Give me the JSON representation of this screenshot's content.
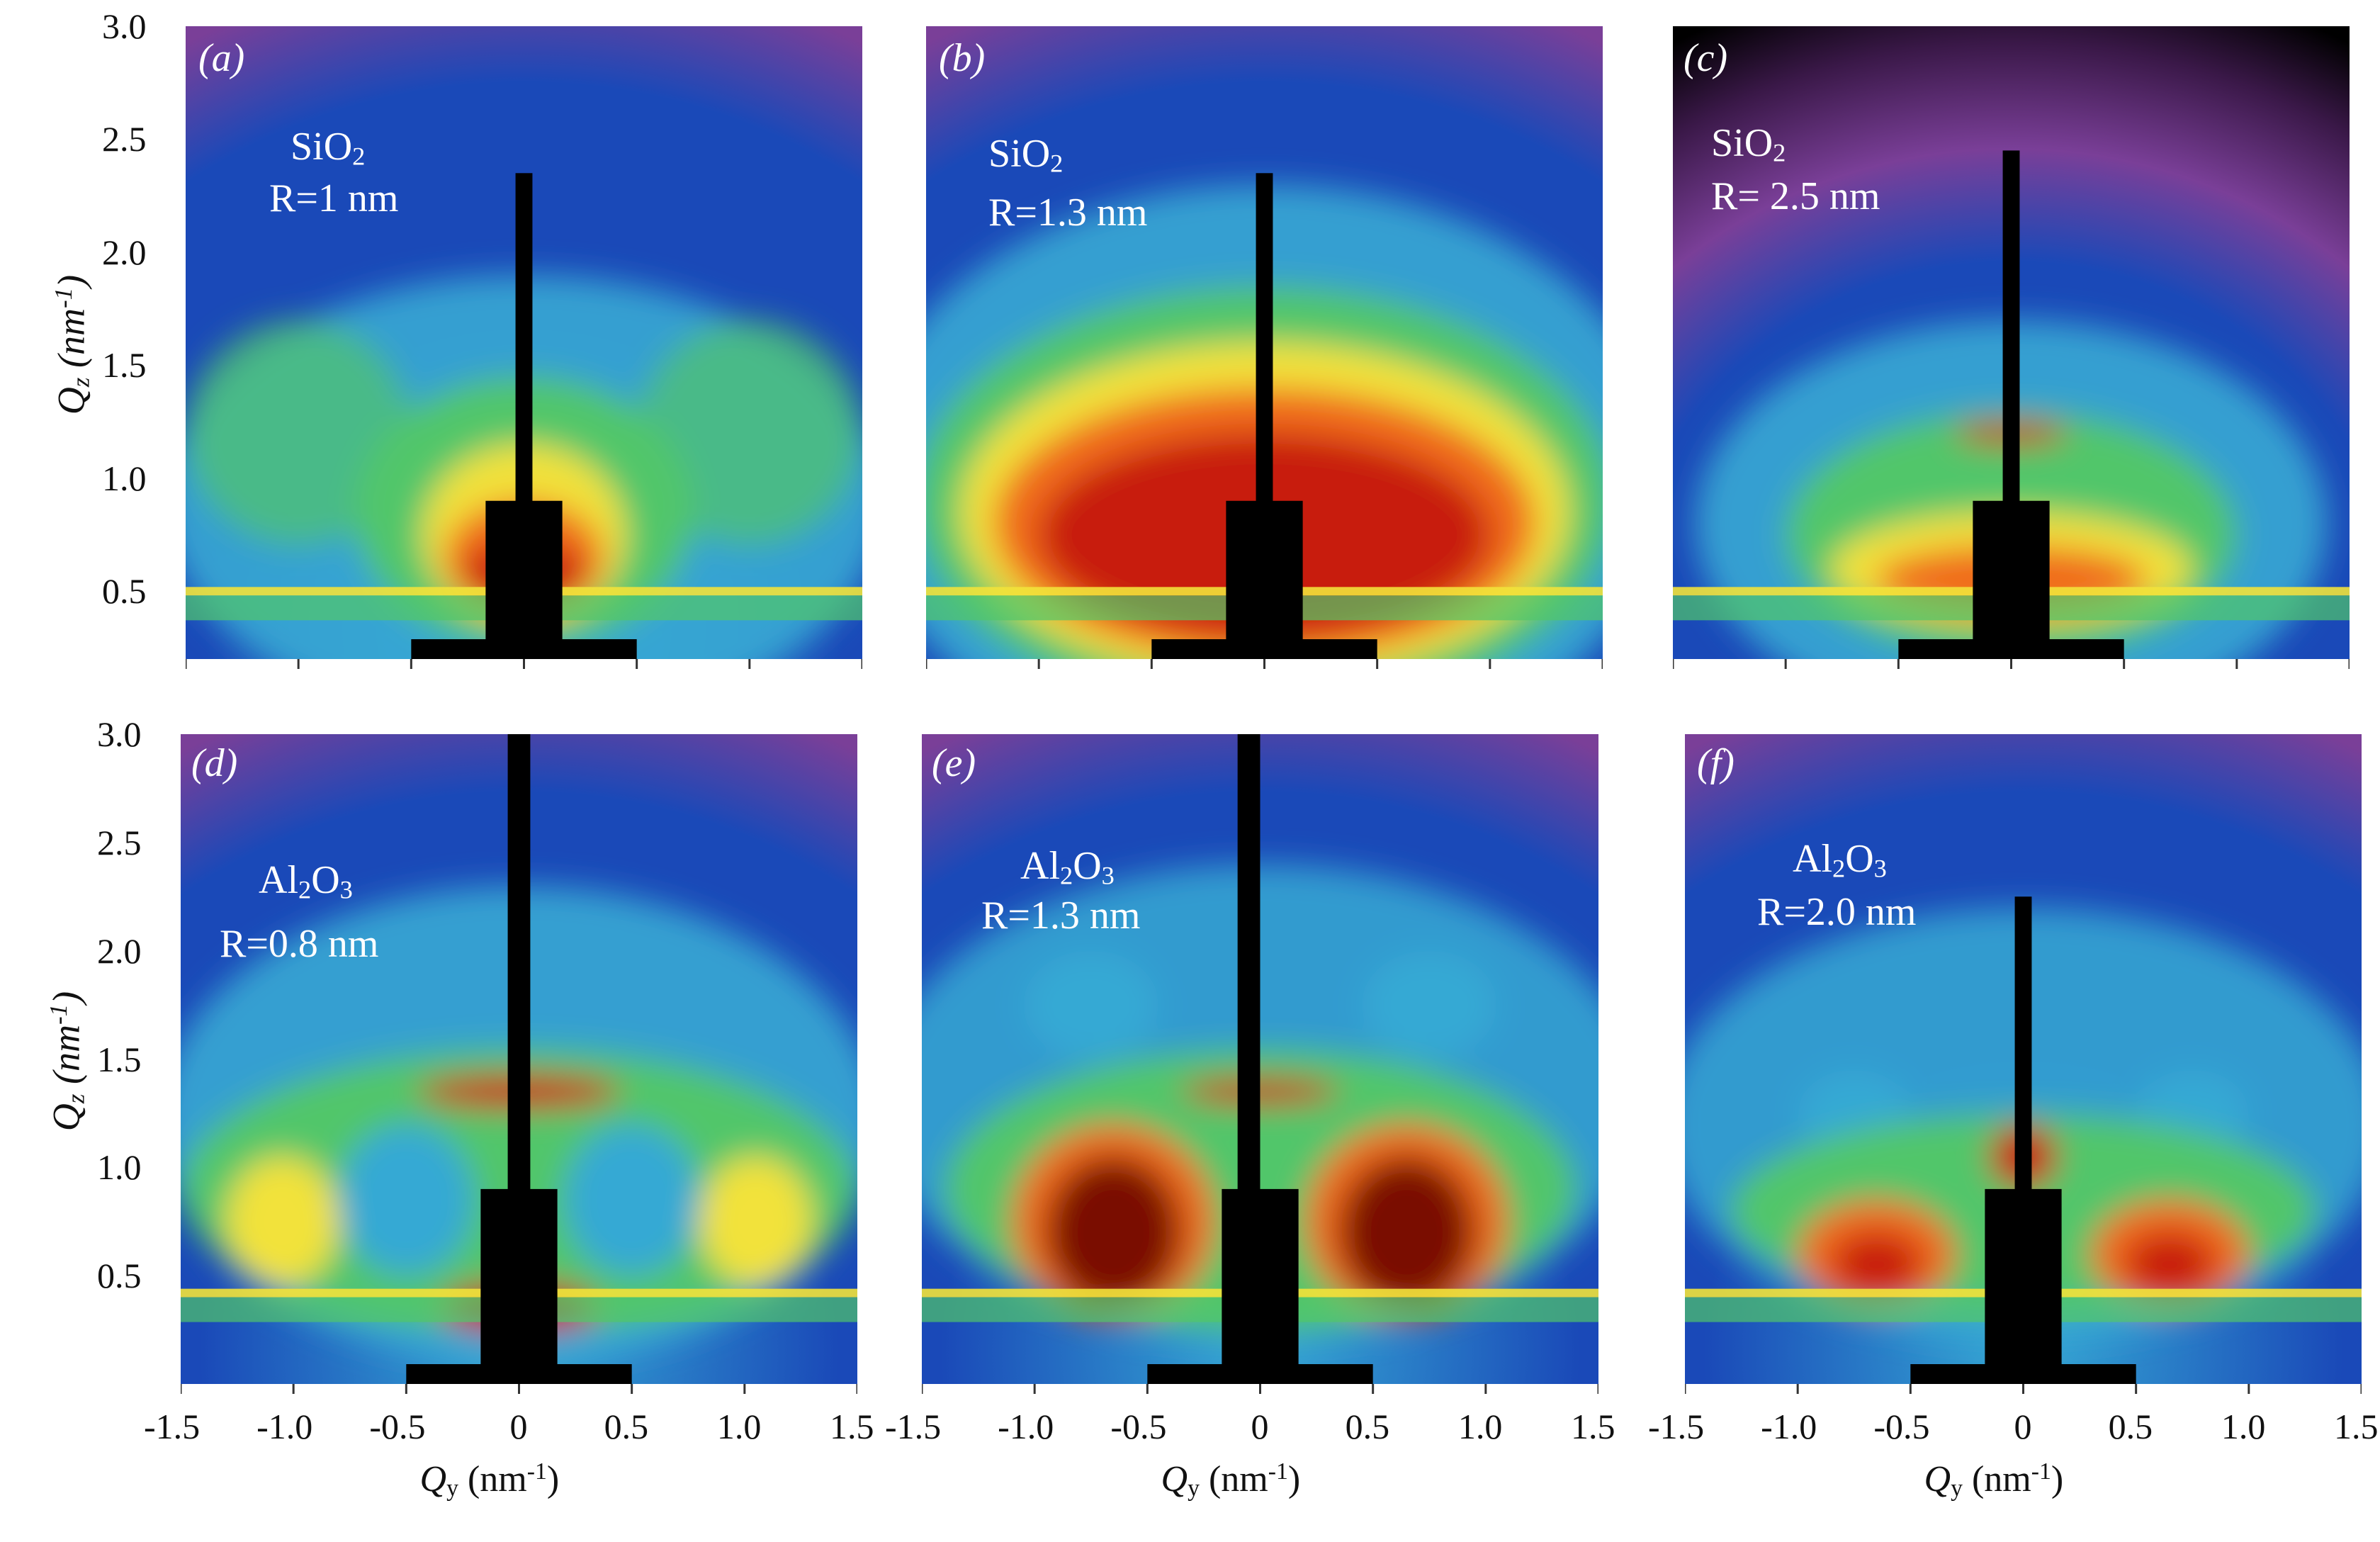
{
  "x_axis_label": {
    "symbol": "Q",
    "sub": "y",
    "unit": " (nm",
    "sup": "-1",
    "close": ")"
  },
  "y_axis_label": {
    "symbol": "Q",
    "sub": "z",
    "unit": " (nm",
    "sup": "-1",
    "close": ")"
  },
  "colors": {
    "black": "#000000",
    "dark_purple": "#3a1848",
    "purple": "#7a3f98",
    "blue": "#1a49b8",
    "cyan": "#36a9d4",
    "green": "#51c66a",
    "yellow": "#f2e23a",
    "orange": "#f06a1a",
    "red": "#c81a10",
    "dark_red": "#7a0c06",
    "label_white": "#ffffff",
    "axis": "#333333"
  },
  "chart_data": [
    {
      "type": "heatmap",
      "panel": "(a)",
      "material": "SiO",
      "material_sub": "2",
      "radius": "R=1 nm",
      "xlim": [
        -1.5,
        1.5
      ],
      "ylim": [
        0.2,
        3.0
      ],
      "x_ticks": [
        -1.5,
        -1.0,
        -0.5,
        0,
        0.5,
        1.0,
        1.5
      ],
      "y_ticks": [
        0.5,
        1.0,
        1.5,
        2.0,
        2.5,
        3.0
      ],
      "x_tick_labels": [],
      "y_tick_labels": [
        "3.0",
        "2.5",
        "2.0",
        "1.5",
        "1.0",
        "0.5"
      ]
    },
    {
      "type": "heatmap",
      "panel": "(b)",
      "material": "SiO",
      "material_sub": "2",
      "radius": "R=1.3 nm",
      "xlim": [
        -1.5,
        1.5
      ],
      "ylim": [
        0.2,
        3.0
      ],
      "x_ticks": [
        -1.5,
        -1.0,
        -0.5,
        0,
        0.5,
        1.0,
        1.5
      ],
      "y_ticks": [],
      "x_tick_labels": [],
      "y_tick_labels": []
    },
    {
      "type": "heatmap",
      "panel": "(c)",
      "material": "SiO",
      "material_sub": "2",
      "radius": "R= 2.5 nm",
      "xlim": [
        -1.5,
        1.5
      ],
      "ylim": [
        0.2,
        3.0
      ],
      "x_ticks": [
        -1.5,
        -1.0,
        -0.5,
        0,
        0.5,
        1.0,
        1.5
      ],
      "y_ticks": [],
      "x_tick_labels": [],
      "y_tick_labels": []
    },
    {
      "type": "heatmap",
      "panel": "(d)",
      "material": "Al",
      "material_sub": "2",
      "material_suffix": "O",
      "material_sub2": "3",
      "radius": "R=0.8 nm",
      "xlim": [
        -1.5,
        1.5
      ],
      "ylim": [
        0.0,
        3.0
      ],
      "x_ticks": [
        -1.5,
        -1.0,
        -0.5,
        0,
        0.5,
        1.0,
        1.5
      ],
      "y_ticks": [
        0.5,
        1.0,
        1.5,
        2.0,
        2.5,
        3.0
      ],
      "x_tick_labels": [
        "-1.5",
        "-1.0",
        "-0.5",
        "0",
        "0.5",
        "1.0",
        "1.5"
      ],
      "y_tick_labels": [
        "3.0",
        "2.5",
        "2.0",
        "1.5",
        "1.0",
        "0.5"
      ]
    },
    {
      "type": "heatmap",
      "panel": "(e)",
      "material": "Al",
      "material_sub": "2",
      "material_suffix": "O",
      "material_sub2": "3",
      "radius": "R=1.3 nm",
      "xlim": [
        -1.5,
        1.5
      ],
      "ylim": [
        0.0,
        3.0
      ],
      "x_ticks": [
        -1.5,
        -1.0,
        -0.5,
        0,
        0.5,
        1.0,
        1.5
      ],
      "y_ticks": [],
      "x_tick_labels": [
        "-1.5",
        "-1.0",
        "-0.5",
        "0",
        "0.5",
        "1.0",
        "1.5"
      ],
      "y_tick_labels": []
    },
    {
      "type": "heatmap",
      "panel": "(f)",
      "material": "Al",
      "material_sub": "2",
      "material_suffix": "O",
      "material_sub2": "3",
      "radius": "R=2.0 nm",
      "xlim": [
        -1.5,
        1.5
      ],
      "ylim": [
        0.0,
        3.0
      ],
      "x_ticks": [
        -1.5,
        -1.0,
        -0.5,
        0,
        0.5,
        1.0,
        1.5
      ],
      "y_ticks": [],
      "x_tick_labels": [
        "-1.5",
        "-1.0",
        "-0.5",
        "0",
        "0.5",
        "1.0",
        "1.5"
      ],
      "y_tick_labels": []
    }
  ]
}
